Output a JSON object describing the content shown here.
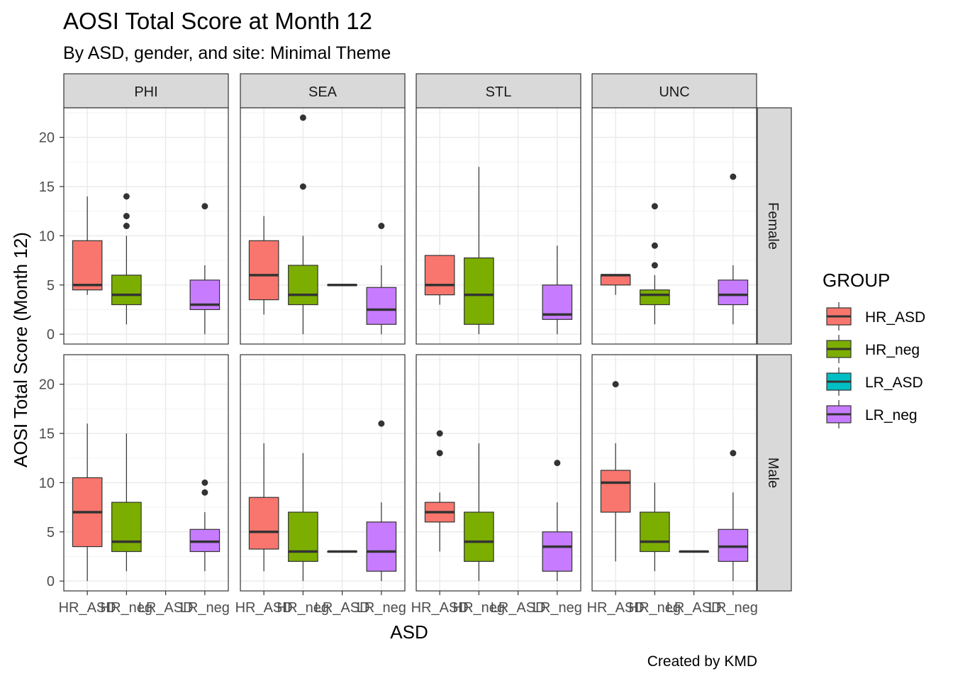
{
  "chart_data": {
    "type": "boxplot",
    "title": "AOSI Total Score at Month 12",
    "subtitle": "By ASD, gender, and site: Minimal Theme",
    "xlabel": "ASD",
    "ylabel": "AOSI Total Score (Month 12)",
    "caption": "Created by KMD",
    "ylim": [
      -1,
      23
    ],
    "yticks": [
      0,
      5,
      10,
      15,
      20
    ],
    "categories": [
      "HR_ASD",
      "HR_neg",
      "LR_ASD",
      "LR_neg"
    ],
    "columns": [
      "PHI",
      "SEA",
      "STL",
      "UNC"
    ],
    "rows": [
      "Female",
      "Male"
    ],
    "legend": {
      "title": "GROUP",
      "position": "right",
      "items": [
        {
          "label": "HR_ASD",
          "color": "#F8766D"
        },
        {
          "label": "HR_neg",
          "color": "#7CAE00"
        },
        {
          "label": "LR_ASD",
          "color": "#00BFC4"
        },
        {
          "label": "LR_neg",
          "color": "#C77CFF"
        }
      ]
    },
    "panels": [
      {
        "row": "Female",
        "col": "PHI",
        "boxes": [
          {
            "group": "HR_ASD",
            "min": 4,
            "q1": 4.5,
            "median": 5,
            "q3": 9.5,
            "max": 14,
            "outliers": []
          },
          {
            "group": "HR_neg",
            "min": 1,
            "q1": 3,
            "median": 4,
            "q3": 6,
            "max": 10,
            "outliers": [
              11,
              12,
              14
            ]
          },
          {
            "group": "LR_neg",
            "min": 0,
            "q1": 2.5,
            "median": 3,
            "q3": 5.5,
            "max": 7,
            "outliers": [
              13
            ]
          }
        ]
      },
      {
        "row": "Female",
        "col": "SEA",
        "boxes": [
          {
            "group": "HR_ASD",
            "min": 2,
            "q1": 3.5,
            "median": 6,
            "q3": 9.5,
            "max": 12,
            "outliers": []
          },
          {
            "group": "HR_neg",
            "min": 0,
            "q1": 3,
            "median": 4,
            "q3": 7,
            "max": 10,
            "outliers": [
              15,
              22
            ]
          },
          {
            "group": "LR_ASD",
            "min": 5,
            "q1": 5,
            "median": 5,
            "q3": 5,
            "max": 5,
            "outliers": []
          },
          {
            "group": "LR_neg",
            "min": 0,
            "q1": 1,
            "median": 2.5,
            "q3": 4.75,
            "max": 7,
            "outliers": [
              11
            ]
          }
        ]
      },
      {
        "row": "Female",
        "col": "STL",
        "boxes": [
          {
            "group": "HR_ASD",
            "min": 3,
            "q1": 4,
            "median": 5,
            "q3": 8,
            "max": 8,
            "outliers": []
          },
          {
            "group": "HR_neg",
            "min": 0,
            "q1": 1,
            "median": 4,
            "q3": 7.75,
            "max": 17,
            "outliers": []
          },
          {
            "group": "LR_neg",
            "min": 0,
            "q1": 1.5,
            "median": 2,
            "q3": 5,
            "max": 9,
            "outliers": []
          }
        ]
      },
      {
        "row": "Female",
        "col": "UNC",
        "boxes": [
          {
            "group": "HR_ASD",
            "min": 4,
            "q1": 5,
            "median": 6,
            "q3": 6,
            "max": 6,
            "outliers": []
          },
          {
            "group": "HR_neg",
            "min": 1,
            "q1": 3,
            "median": 4,
            "q3": 4.5,
            "max": 6,
            "outliers": [
              7,
              9,
              13
            ]
          },
          {
            "group": "LR_neg",
            "min": 1,
            "q1": 3,
            "median": 4,
            "q3": 5.5,
            "max": 7,
            "outliers": [
              16
            ]
          }
        ]
      },
      {
        "row": "Male",
        "col": "PHI",
        "boxes": [
          {
            "group": "HR_ASD",
            "min": 0,
            "q1": 3.5,
            "median": 7,
            "q3": 10.5,
            "max": 16,
            "outliers": []
          },
          {
            "group": "HR_neg",
            "min": 1,
            "q1": 3,
            "median": 4,
            "q3": 8,
            "max": 15,
            "outliers": []
          },
          {
            "group": "LR_neg",
            "min": 1,
            "q1": 3,
            "median": 4,
            "q3": 5.25,
            "max": 7,
            "outliers": [
              9,
              10
            ]
          }
        ]
      },
      {
        "row": "Male",
        "col": "SEA",
        "boxes": [
          {
            "group": "HR_ASD",
            "min": 1,
            "q1": 3.25,
            "median": 5,
            "q3": 8.5,
            "max": 14,
            "outliers": []
          },
          {
            "group": "HR_neg",
            "min": 0,
            "q1": 2,
            "median": 3,
            "q3": 7,
            "max": 13,
            "outliers": []
          },
          {
            "group": "LR_ASD",
            "min": 3,
            "q1": 3,
            "median": 3,
            "q3": 3,
            "max": 3,
            "outliers": []
          },
          {
            "group": "LR_neg",
            "min": 0,
            "q1": 1,
            "median": 3,
            "q3": 6,
            "max": 8,
            "outliers": [
              16
            ]
          }
        ]
      },
      {
        "row": "Male",
        "col": "STL",
        "boxes": [
          {
            "group": "HR_ASD",
            "min": 3,
            "q1": 6,
            "median": 7,
            "q3": 8,
            "max": 9,
            "outliers": [
              13,
              15
            ]
          },
          {
            "group": "HR_neg",
            "min": 0,
            "q1": 2,
            "median": 4,
            "q3": 7,
            "max": 14,
            "outliers": []
          },
          {
            "group": "LR_neg",
            "min": 0,
            "q1": 1,
            "median": 3.5,
            "q3": 5,
            "max": 8,
            "outliers": [
              12
            ]
          }
        ]
      },
      {
        "row": "Male",
        "col": "UNC",
        "boxes": [
          {
            "group": "HR_ASD",
            "min": 2,
            "q1": 7,
            "median": 10,
            "q3": 11.25,
            "max": 14,
            "outliers": [
              20
            ]
          },
          {
            "group": "HR_neg",
            "min": 1,
            "q1": 3,
            "median": 4,
            "q3": 7,
            "max": 10,
            "outliers": []
          },
          {
            "group": "LR_ASD",
            "min": 3,
            "q1": 3,
            "median": 3,
            "q3": 3,
            "max": 3,
            "outliers": []
          },
          {
            "group": "LR_neg",
            "min": 0,
            "q1": 2,
            "median": 3.5,
            "q3": 5.25,
            "max": 9,
            "outliers": [
              13
            ]
          }
        ]
      }
    ]
  }
}
